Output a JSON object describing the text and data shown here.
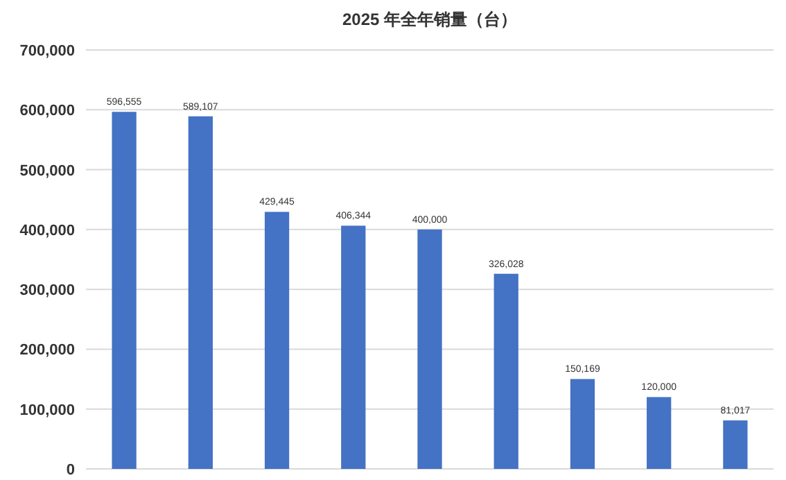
{
  "chart_data": {
    "type": "bar",
    "title": "2025 年全年销量（台）",
    "categories": [
      null,
      null,
      null,
      null,
      null,
      null,
      null,
      null,
      null
    ],
    "values": [
      596555,
      589107,
      429445,
      406344,
      400000,
      326028,
      150169,
      120000,
      81017
    ],
    "value_labels": [
      "596,555",
      "589,107",
      "429,445",
      "406,344",
      "400,000",
      "326,028",
      "150,169",
      "120,000",
      "81,017"
    ],
    "color": "#4472c4",
    "ylim": [
      0,
      700000
    ],
    "yticks": [
      {
        "value": 0,
        "label": "0"
      },
      {
        "value": 100000,
        "label": "100,000"
      },
      {
        "value": 200000,
        "label": "200,000"
      },
      {
        "value": 300000,
        "label": "300,000"
      },
      {
        "value": 400000,
        "label": "400,000"
      },
      {
        "value": 500000,
        "label": "500,000"
      },
      {
        "value": 600000,
        "label": "600,000"
      },
      {
        "value": 700000,
        "label": "700,000"
      }
    ],
    "grid": "y",
    "tick_labels": "y"
  }
}
